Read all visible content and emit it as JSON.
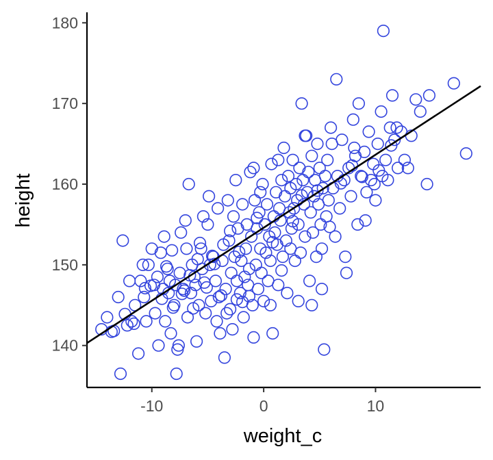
{
  "chart_data": {
    "type": "scatter",
    "xlabel": "weight_c",
    "ylabel": "height",
    "xlim": [
      -15.8,
      19.4
    ],
    "ylim": [
      134.8,
      181.3
    ],
    "x_ticks": [
      -10,
      0,
      10
    ],
    "x_tick_labels": [
      "-10",
      "0",
      "10"
    ],
    "y_ticks": [
      140,
      150,
      160,
      170,
      180
    ],
    "y_tick_labels": [
      "140",
      "150",
      "160",
      "170",
      "180"
    ],
    "grid": false,
    "legend": "none",
    "point_color": "#3344dd",
    "line_color": "#000000",
    "regression_line": {
      "intercept": 154.6,
      "slope": 0.905
    },
    "points": [
      [
        -14,
        143.5
      ],
      [
        -13.4,
        141.8
      ],
      [
        -13,
        146
      ],
      [
        -12.8,
        136.5
      ],
      [
        -12.6,
        153
      ],
      [
        -12.2,
        142.5
      ],
      [
        -11.8,
        143
      ],
      [
        -11.5,
        145
      ],
      [
        -11.2,
        139
      ],
      [
        -11,
        148
      ],
      [
        -10.7,
        146
      ],
      [
        -10.5,
        143
      ],
      [
        -10.3,
        150
      ],
      [
        -10,
        152
      ],
      [
        -9.8,
        147.5
      ],
      [
        -9.7,
        144
      ],
      [
        -9.5,
        148.5
      ],
      [
        -9.2,
        151.5
      ],
      [
        -9,
        147
      ],
      [
        -8.9,
        153.5
      ],
      [
        -8.8,
        143
      ],
      [
        -8.6,
        149.5
      ],
      [
        -8.5,
        146.5
      ],
      [
        -8.3,
        141.5
      ],
      [
        -8.2,
        151.8
      ],
      [
        -8,
        145
      ],
      [
        -7.9,
        147.5
      ],
      [
        -7.8,
        136.5
      ],
      [
        -7.6,
        140
      ],
      [
        -7.5,
        149
      ],
      [
        -7.4,
        154
      ],
      [
        -7.2,
        147
      ],
      [
        -7,
        155.5
      ],
      [
        -6.8,
        143.5
      ],
      [
        -6.7,
        160
      ],
      [
        -6.5,
        146.5
      ],
      [
        -6.4,
        150
      ],
      [
        -6.2,
        148.5
      ],
      [
        -6,
        140.5
      ],
      [
        -5.8,
        145
      ],
      [
        -5.6,
        152
      ],
      [
        -5.5,
        149.5
      ],
      [
        -5.3,
        147.8
      ],
      [
        -5.2,
        144
      ],
      [
        -5,
        155
      ],
      [
        -4.8,
        150
      ],
      [
        -4.7,
        145.5
      ],
      [
        -4.5,
        151
      ],
      [
        -4.3,
        148
      ],
      [
        -4.2,
        143
      ],
      [
        -4,
        146
      ],
      [
        -3.9,
        141.5
      ],
      [
        -3.7,
        150.5
      ],
      [
        -3.6,
        152.5
      ],
      [
        -3.5,
        138.5
      ],
      [
        -3.4,
        147
      ],
      [
        -3.2,
        158
      ],
      [
        -3.1,
        153
      ],
      [
        -3,
        144.5
      ],
      [
        -2.9,
        149
      ],
      [
        -2.7,
        156
      ],
      [
        -2.6,
        151
      ],
      [
        -2.5,
        160.5
      ],
      [
        -2.4,
        148
      ],
      [
        -2.3,
        154.5
      ],
      [
        -2.1,
        146.5
      ],
      [
        -2,
        150.5
      ],
      [
        -1.9,
        157.5
      ],
      [
        -1.8,
        143.5
      ],
      [
        -1.6,
        152
      ],
      [
        -1.5,
        155
      ],
      [
        -1.4,
        147.5
      ],
      [
        -1.3,
        149.5
      ],
      [
        -1.2,
        161.5
      ],
      [
        -1.1,
        153.5
      ],
      [
        -1,
        145
      ],
      [
        -0.9,
        141
      ],
      [
        -0.8,
        158
      ],
      [
        -0.7,
        150
      ],
      [
        -0.6,
        154.5
      ],
      [
        -0.5,
        147
      ],
      [
        -0.4,
        156.5
      ],
      [
        -0.3,
        152
      ],
      [
        -0.2,
        149
      ],
      [
        -0.1,
        160
      ],
      [
        0,
        145.5
      ],
      [
        0.1,
        155
      ],
      [
        0.2,
        151.5
      ],
      [
        0.3,
        157.5
      ],
      [
        0.4,
        148
      ],
      [
        0.5,
        153.5
      ],
      [
        0.6,
        150.5
      ],
      [
        0.7,
        162.5
      ],
      [
        0.8,
        141.5
      ],
      [
        0.9,
        156
      ],
      [
        1,
        154
      ],
      [
        1.1,
        159
      ],
      [
        1.2,
        152.5
      ],
      [
        1.3,
        147.5
      ],
      [
        1.4,
        157
      ],
      [
        1.5,
        155.5
      ],
      [
        1.6,
        160.5
      ],
      [
        1.7,
        151
      ],
      [
        1.8,
        164.5
      ],
      [
        1.9,
        158.5
      ],
      [
        2,
        153
      ],
      [
        2.1,
        146.5
      ],
      [
        2.2,
        161
      ],
      [
        2.3,
        156.5
      ],
      [
        2.4,
        159.5
      ],
      [
        2.5,
        154.5
      ],
      [
        2.6,
        163
      ],
      [
        2.7,
        157
      ],
      [
        2.8,
        150.5
      ],
      [
        2.9,
        160
      ],
      [
        3,
        158
      ],
      [
        3.1,
        155
      ],
      [
        3.2,
        162
      ],
      [
        3.3,
        151.5
      ],
      [
        3.4,
        170
      ],
      [
        3.5,
        160.5
      ],
      [
        3.6,
        157.5
      ],
      [
        3.7,
        153.5
      ],
      [
        3.8,
        166
      ],
      [
        3.9,
        159
      ],
      [
        4,
        161.5
      ],
      [
        4.1,
        148
      ],
      [
        4.2,
        156.5
      ],
      [
        4.3,
        163.5
      ],
      [
        4.4,
        154
      ],
      [
        4.5,
        158.5
      ],
      [
        4.6,
        160.5
      ],
      [
        4.7,
        151
      ],
      [
        4.8,
        165
      ],
      [
        4.9,
        157.5
      ],
      [
        5,
        162
      ],
      [
        5.1,
        155
      ],
      [
        5.2,
        147
      ],
      [
        5.3,
        159.5
      ],
      [
        5.4,
        139.5
      ],
      [
        5.5,
        161
      ],
      [
        5.6,
        156
      ],
      [
        5.7,
        163
      ],
      [
        5.8,
        158
      ],
      [
        6,
        167
      ],
      [
        6.2,
        159.5
      ],
      [
        6.4,
        153.5
      ],
      [
        6.5,
        173
      ],
      [
        6.6,
        161
      ],
      [
        6.8,
        157
      ],
      [
        7,
        165.5
      ],
      [
        7.2,
        160.5
      ],
      [
        7.4,
        149
      ],
      [
        7.6,
        162
      ],
      [
        7.8,
        158.5
      ],
      [
        8,
        168
      ],
      [
        8.2,
        163.5
      ],
      [
        8.4,
        155
      ],
      [
        8.5,
        170
      ],
      [
        8.7,
        161
      ],
      [
        9,
        164
      ],
      [
        9.2,
        159
      ],
      [
        9.4,
        166.5
      ],
      [
        9.6,
        160.5
      ],
      [
        9.8,
        162.5
      ],
      [
        10,
        158
      ],
      [
        10.2,
        165
      ],
      [
        10.5,
        169
      ],
      [
        10.7,
        179
      ],
      [
        10.9,
        163
      ],
      [
        11.1,
        160.5
      ],
      [
        11.3,
        167
      ],
      [
        11.5,
        171
      ],
      [
        11.7,
        165.5
      ],
      [
        12,
        162
      ],
      [
        12.3,
        166.5
      ],
      [
        12.6,
        163
      ],
      [
        13.2,
        166
      ],
      [
        13.6,
        170.5
      ],
      [
        14,
        169
      ],
      [
        14.6,
        160
      ],
      [
        14.8,
        171
      ],
      [
        17,
        172.5
      ],
      [
        18.1,
        163.8
      ],
      [
        -14.5,
        142
      ],
      [
        -12,
        148
      ],
      [
        -10.8,
        150
      ],
      [
        -9.4,
        140
      ],
      [
        -8.4,
        148
      ],
      [
        -7.7,
        139.5
      ],
      [
        -6.9,
        152
      ],
      [
        -6.1,
        147.5
      ],
      [
        -5.4,
        156
      ],
      [
        -4.9,
        158.5
      ],
      [
        -4.1,
        157
      ],
      [
        -3.3,
        144
      ],
      [
        -2.8,
        142
      ],
      [
        -1.7,
        148.5
      ],
      [
        -0.9,
        162
      ],
      [
        -0.3,
        159
      ],
      [
        0.6,
        145
      ],
      [
        1.3,
        163
      ],
      [
        2.4,
        152
      ],
      [
        3.1,
        145.5
      ],
      [
        3.7,
        166
      ],
      [
        4.3,
        145
      ],
      [
        5.2,
        152
      ],
      [
        6.1,
        165
      ],
      [
        7.3,
        151
      ],
      [
        8.1,
        164.5
      ],
      [
        9.1,
        155.5
      ],
      [
        9.9,
        160
      ],
      [
        10.6,
        161
      ],
      [
        11.9,
        167
      ],
      [
        12.9,
        162
      ],
      [
        -13.6,
        141.7
      ],
      [
        -11.6,
        142.7
      ],
      [
        -10.1,
        147.4
      ],
      [
        -8.7,
        149.8
      ],
      [
        -7.1,
        146.8
      ],
      [
        -6.6,
        148.7
      ],
      [
        -5.9,
        150.7
      ],
      [
        -5.1,
        147.2
      ],
      [
        -4.4,
        150.1
      ],
      [
        -3.8,
        146.2
      ],
      [
        -2.2,
        151.6
      ],
      [
        -1.3,
        146.1
      ],
      [
        -0.6,
        155.8
      ],
      [
        0.8,
        152.8
      ],
      [
        1.6,
        149.3
      ],
      [
        2.6,
        155.4
      ],
      [
        3.4,
        158.6
      ],
      [
        4.8,
        159.2
      ],
      [
        5.9,
        154.7
      ],
      [
        6.9,
        160.1
      ],
      [
        7.9,
        162.3
      ],
      [
        8.8,
        160.9
      ],
      [
        10.3,
        161.7
      ],
      [
        11.4,
        164.8
      ],
      [
        -1.9,
        145.4
      ],
      [
        -2.4,
        145.7
      ],
      [
        -3,
        154.2
      ],
      [
        -4.6,
        151.1
      ],
      [
        -5.7,
        152.7
      ],
      [
        -6.3,
        144.6
      ],
      [
        -7.3,
        146.4
      ],
      [
        -8.1,
        144.7
      ],
      [
        -9.1,
        145.8
      ],
      [
        -10.6,
        147.1
      ],
      [
        -12.4,
        143.9
      ]
    ]
  }
}
